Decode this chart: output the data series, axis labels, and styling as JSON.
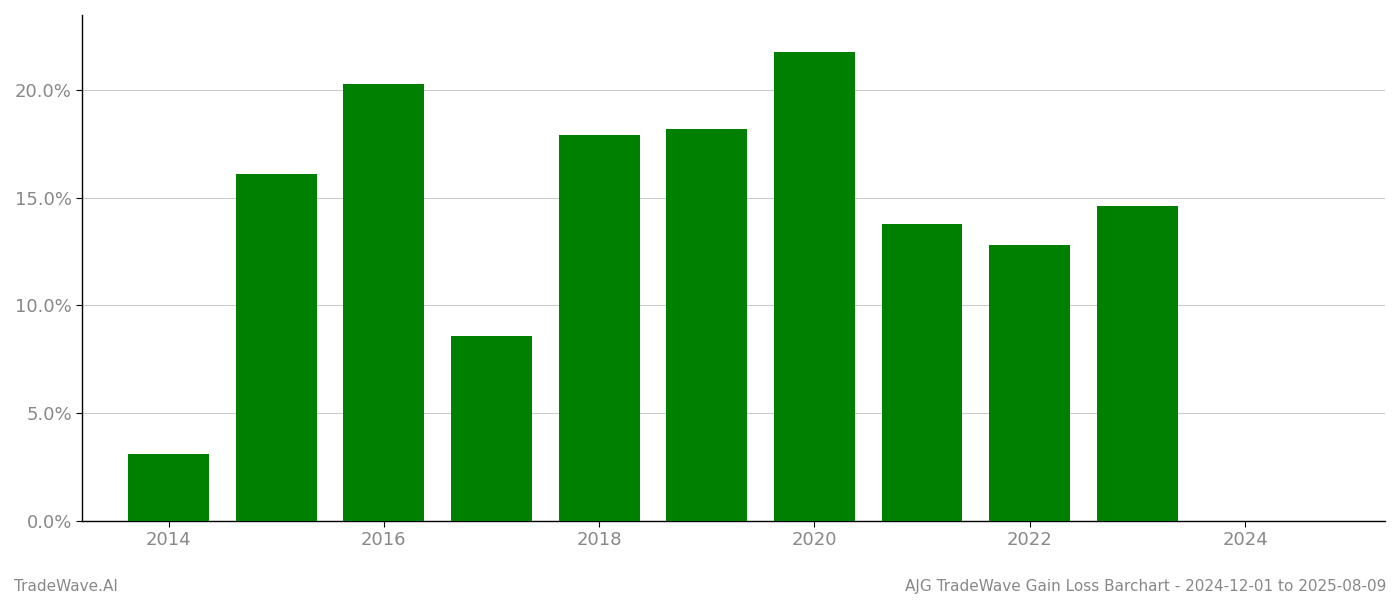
{
  "years": [
    2014,
    2015,
    2016,
    2017,
    2018,
    2019,
    2020,
    2021,
    2022,
    2023
  ],
  "values": [
    0.031,
    0.161,
    0.203,
    0.086,
    0.179,
    0.182,
    0.218,
    0.138,
    0.128,
    0.146
  ],
  "bar_color": "#008000",
  "background_color": "#ffffff",
  "grid_color": "#cccccc",
  "ylim": [
    0,
    0.235
  ],
  "yticks": [
    0.0,
    0.05,
    0.1,
    0.15,
    0.2
  ],
  "xlim_left": 2013.2,
  "xlim_right": 2025.3,
  "xticks": [
    2014,
    2016,
    2018,
    2020,
    2022,
    2024
  ],
  "footer_left": "TradeWave.AI",
  "footer_right": "AJG TradeWave Gain Loss Barchart - 2024-12-01 to 2025-08-09",
  "footer_color": "#888888",
  "footer_fontsize": 11,
  "tick_label_color": "#888888",
  "tick_fontsize": 13,
  "bar_width": 0.75
}
